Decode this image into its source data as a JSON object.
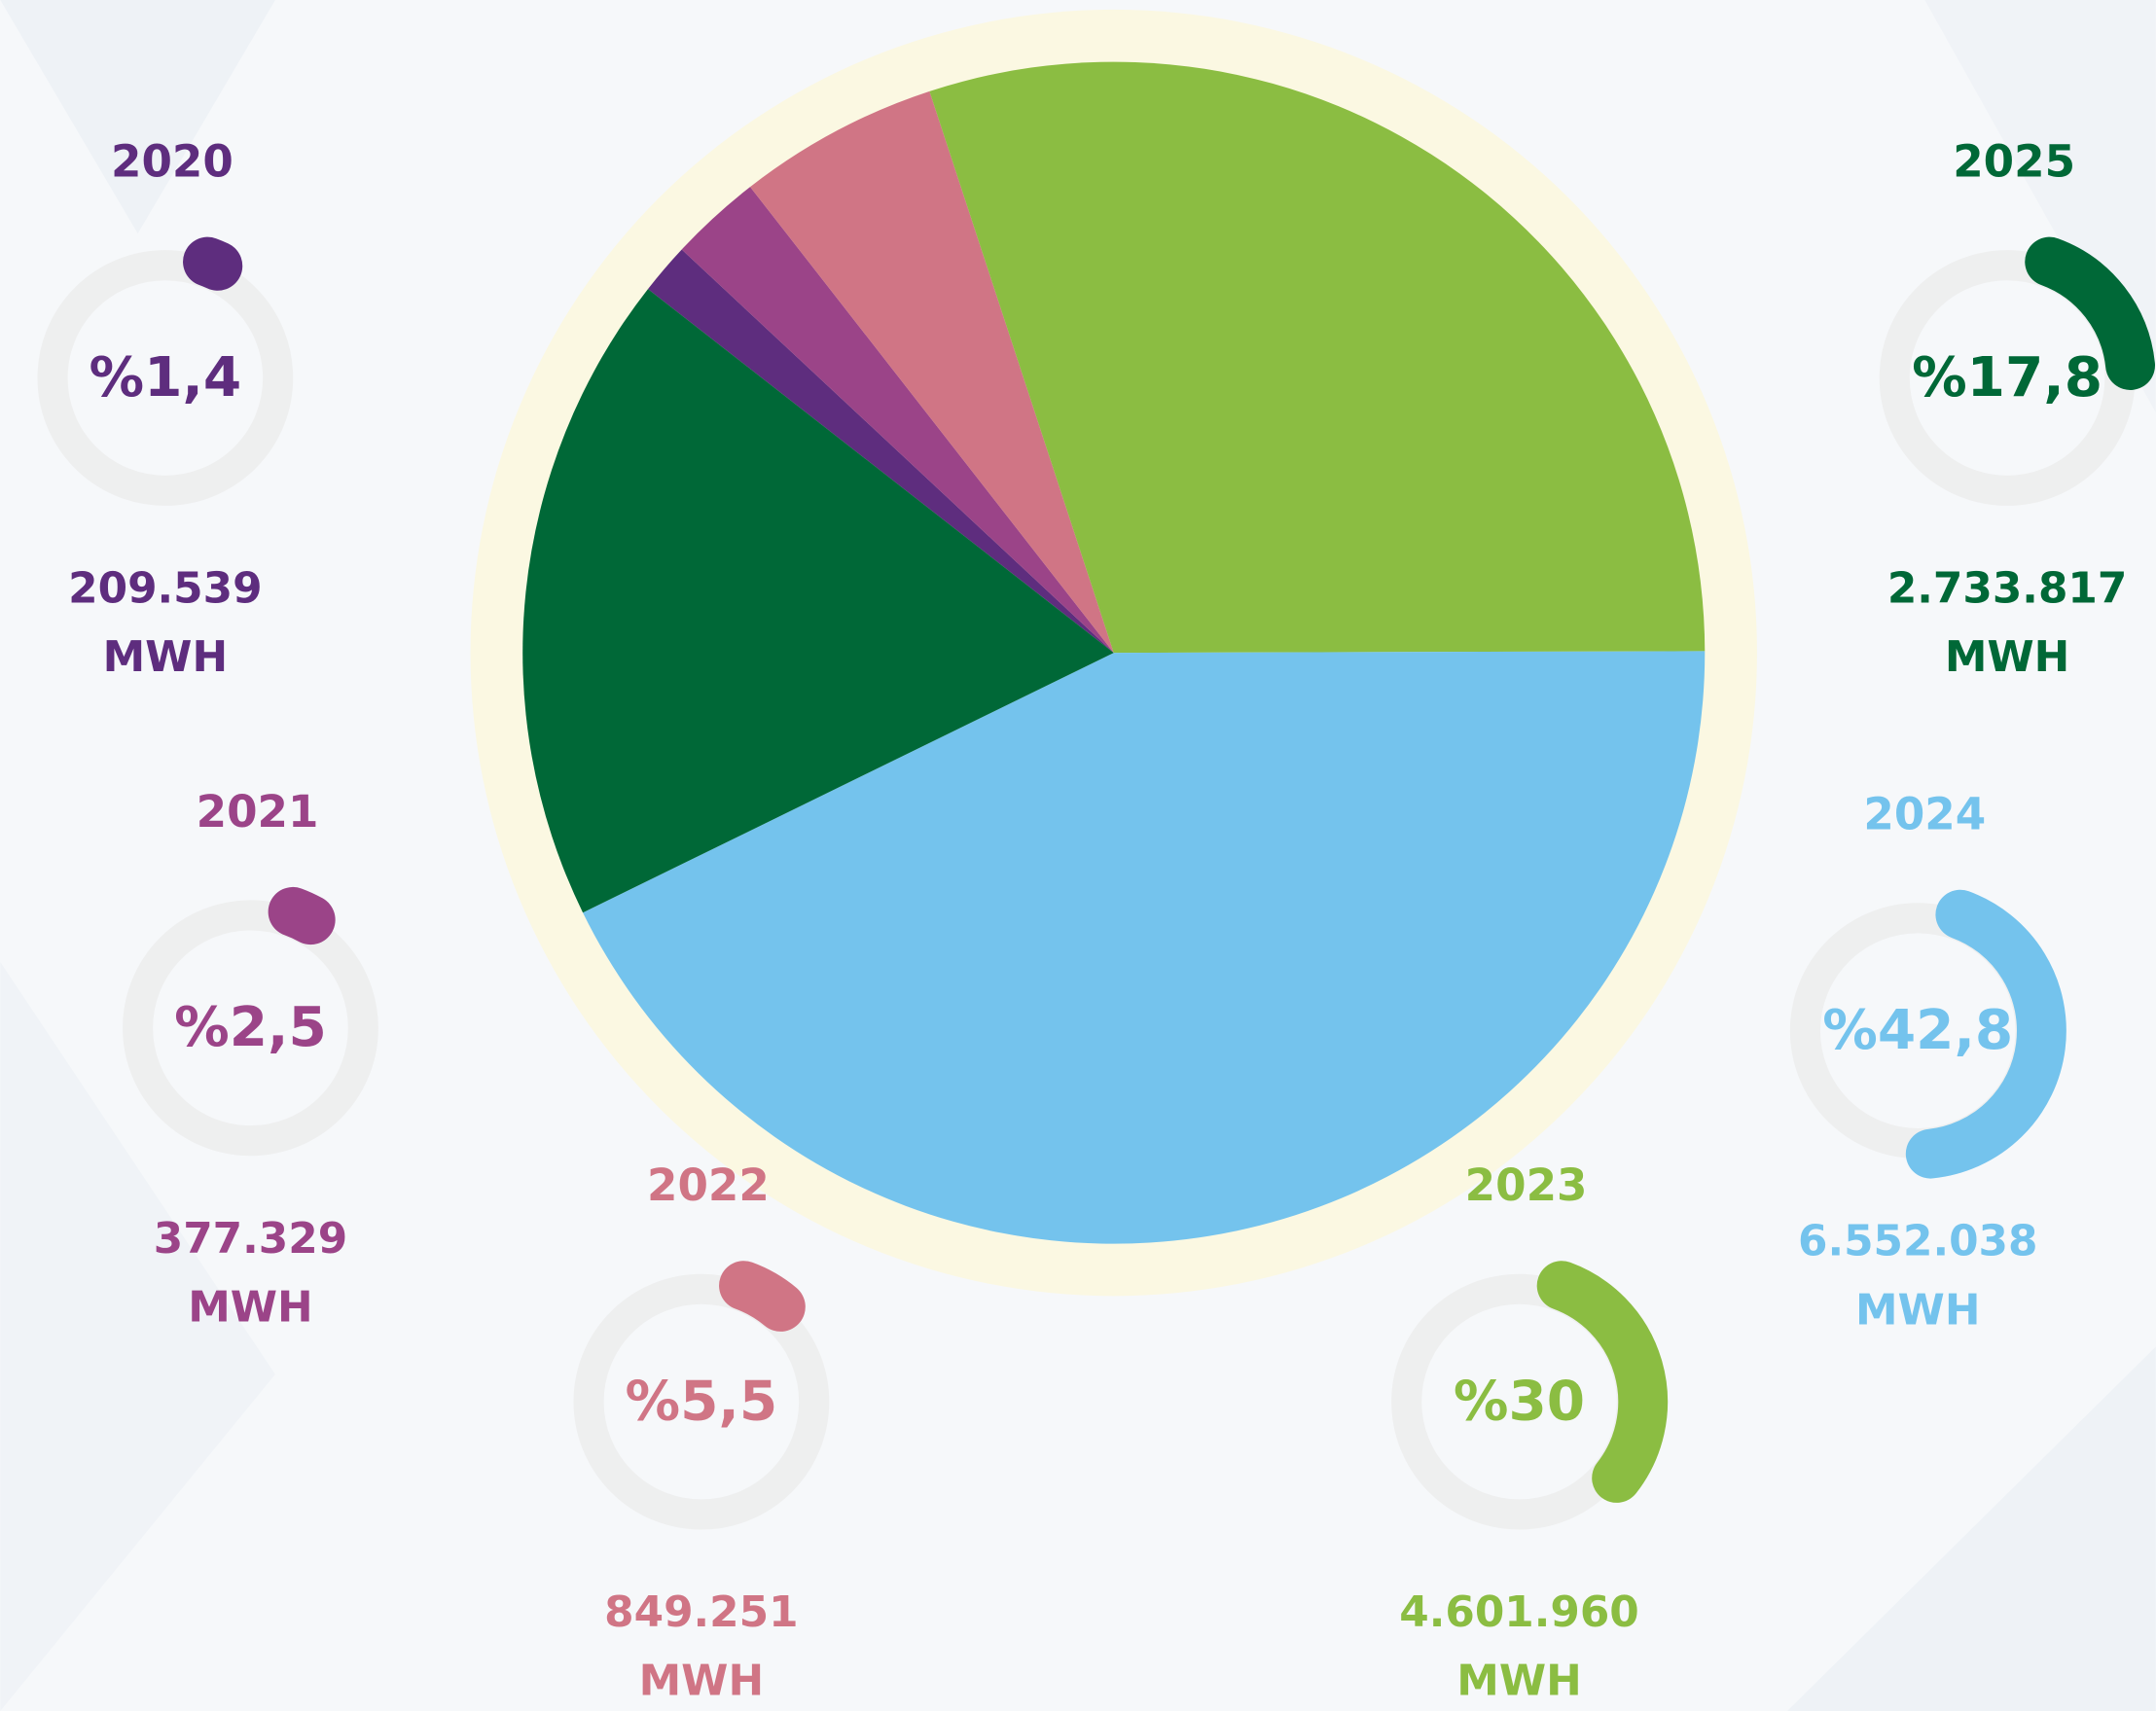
{
  "chart_data": {
    "type": "pie",
    "categories": [
      "2020",
      "2021",
      "2022",
      "2023",
      "2024",
      "2025"
    ],
    "values": [
      1.4,
      2.5,
      5.5,
      30,
      42.8,
      17.8
    ],
    "value_labels": [
      "%1,4",
      "%2,5",
      "%5,5",
      "%30",
      "%42,8",
      "%17,8"
    ],
    "energy_values": [
      209539,
      377329,
      849251,
      4601960,
      6552038,
      2733817
    ],
    "energy_labels": [
      "209.539",
      "377.329",
      "849.251",
      "4.601.960",
      "6.552.038",
      "2.733.817"
    ],
    "unit": "MWH",
    "colors": [
      "#5e2d7e",
      "#9b4488",
      "#d07585",
      "#8bbd42",
      "#74c3ed",
      "#006837"
    ]
  }
}
